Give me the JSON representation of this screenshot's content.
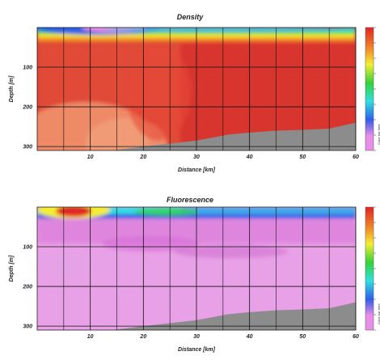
{
  "chart_data": [
    {
      "type": "heatmap",
      "title": "Density",
      "xlabel": "Distance [km]",
      "ylabel": "Depth [m]",
      "x_ticks": [
        "10",
        "20",
        "30",
        "40",
        "50",
        "60"
      ],
      "y_ticks": [
        "100",
        "200",
        "300"
      ],
      "xlim": [
        0,
        60
      ],
      "ylim": [
        0,
        310
      ],
      "colorbar_label": "Color bar here",
      "seafloor_depth": [
        [
          0,
          310
        ],
        [
          14,
          310
        ],
        [
          20,
          300
        ],
        [
          30,
          285
        ],
        [
          36,
          270
        ],
        [
          40,
          265
        ],
        [
          45,
          260
        ],
        [
          50,
          258
        ],
        [
          55,
          255
        ],
        [
          60,
          240
        ]
      ],
      "field": "mostly high (red) below a thin surface layer; low values (blue/cyan/violet) in the upper ~20 m, lighter orange near the bottom of 0–20 km"
    },
    {
      "type": "heatmap",
      "title": "Fluorescence",
      "xlabel": "Distance [km]",
      "ylabel": "Depth [m]",
      "x_ticks": [
        "10",
        "20",
        "30",
        "40",
        "50",
        "60"
      ],
      "y_ticks": [
        "100",
        "200",
        "300"
      ],
      "xlim": [
        0,
        60
      ],
      "ylim": [
        0,
        310
      ],
      "colorbar_label": "Color bar here",
      "seafloor_depth": [
        [
          0,
          310
        ],
        [
          14,
          310
        ],
        [
          20,
          300
        ],
        [
          30,
          285
        ],
        [
          36,
          270
        ],
        [
          40,
          265
        ],
        [
          45,
          260
        ],
        [
          50,
          258
        ],
        [
          55,
          255
        ],
        [
          60,
          240
        ]
      ],
      "field": "mostly low (violet/pink) at depth; high values (red/yellow) near the surface at ~5–10 km; blue/cyan surface band elsewhere"
    }
  ],
  "colors": {
    "low": "#e88ee8",
    "blue": "#2f5ee8",
    "cyan": "#2fe0e0",
    "green": "#35d23a",
    "yellow": "#f4ee33",
    "orange": "#f28f2a",
    "red": "#e02525",
    "seafloor": "#8c8c8c"
  }
}
